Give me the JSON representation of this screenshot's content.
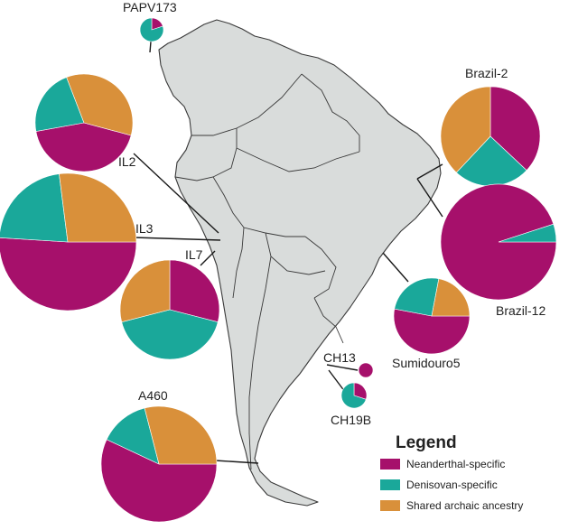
{
  "colors": {
    "neanderthal": "#a6106b",
    "denisovan": "#1aa89a",
    "shared": "#d9903a"
  },
  "legend": {
    "title": "Legend",
    "items": [
      {
        "key": "neanderthal",
        "label": "Neanderthal-specific"
      },
      {
        "key": "denisovan",
        "label": "Denisovan-specific"
      },
      {
        "key": "shared",
        "label": "Shared archaic ancestry"
      }
    ]
  },
  "sites": [
    {
      "id": "papv173",
      "label": "PAPV173",
      "values": [
        20,
        80,
        0
      ]
    },
    {
      "id": "il2",
      "label": "IL2",
      "values": [
        43,
        22,
        35
      ]
    },
    {
      "id": "il3",
      "label": "IL3",
      "values": [
        51,
        22,
        27
      ]
    },
    {
      "id": "il7",
      "label": "IL7",
      "values": [
        29,
        42,
        29
      ]
    },
    {
      "id": "brazil-2",
      "label": "Brazil-2",
      "values": [
        37,
        25,
        38
      ]
    },
    {
      "id": "brazil-12",
      "label": "Brazil-12",
      "values": [
        95,
        5,
        0
      ]
    },
    {
      "id": "sumidouro5",
      "label": "Sumidouro5",
      "values": [
        53,
        25,
        22
      ]
    },
    {
      "id": "ch13",
      "label": "CH13",
      "values": [
        100,
        0,
        0
      ]
    },
    {
      "id": "ch19b",
      "label": "CH19B",
      "values": [
        30,
        70,
        0
      ]
    },
    {
      "id": "a460",
      "label": "A460",
      "values": [
        57,
        14,
        29
      ]
    }
  ]
}
